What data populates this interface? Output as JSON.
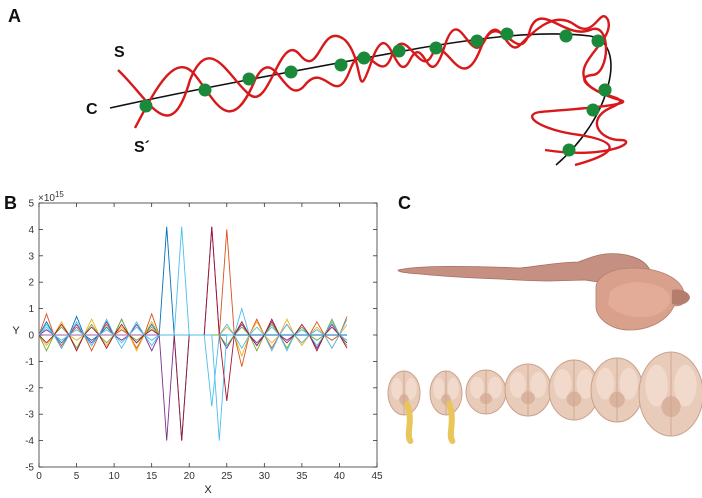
{
  "panels": {
    "a": "A",
    "b": "B",
    "c": "C"
  },
  "panelA": {
    "label_s": "S",
    "label_c": "C",
    "label_s_prime": "S´",
    "colors": {
      "helix": "#d7191c",
      "axis": "#111111",
      "nodes": "#1a8a3a"
    },
    "node_count": 13
  },
  "chart_data": {
    "type": "line",
    "title": "",
    "xlabel": "X",
    "ylabel": "Y",
    "exponent_label": "×10",
    "exponent_power": "15",
    "xlim": [
      0,
      45
    ],
    "ylim": [
      -5,
      5
    ],
    "xticks": [
      "0",
      "5",
      "10",
      "15",
      "20",
      "25",
      "30",
      "35",
      "40",
      "45"
    ],
    "yticks": [
      "5",
      "4",
      "3",
      "2",
      "1",
      "0",
      "-1",
      "-2",
      "-3",
      "-4",
      "-5"
    ],
    "x": [
      0,
      1,
      2,
      3,
      4,
      5,
      6,
      7,
      8,
      9,
      10,
      11,
      12,
      13,
      14,
      15,
      16,
      17,
      18,
      19,
      20,
      21,
      22,
      23,
      24,
      25,
      26,
      27,
      28,
      29,
      30,
      31,
      32,
      33,
      34,
      35,
      36,
      37,
      38,
      39,
      40,
      41
    ],
    "series": [
      {
        "color": "#0072bd",
        "values": [
          0,
          0.5,
          0,
          -0.3,
          0,
          0.7,
          0,
          -0.2,
          0,
          0.3,
          0,
          0.6,
          0,
          -0.3,
          0,
          0.4,
          0,
          4.1,
          0,
          -4.0,
          0,
          0,
          0,
          0,
          0,
          0,
          0,
          0,
          0,
          0,
          0,
          0,
          0,
          0,
          0,
          0,
          0,
          0,
          0,
          0,
          0,
          0
        ]
      },
      {
        "color": "#d95319",
        "values": [
          0,
          0.8,
          0,
          -0.4,
          0,
          0.3,
          0,
          -0.6,
          0,
          0.4,
          0,
          0.2,
          0,
          -0.5,
          0,
          0.8,
          0,
          0,
          0,
          0,
          0,
          0,
          0,
          0,
          0,
          4.0,
          0,
          -1.2,
          0,
          0.6,
          0,
          -0.5,
          0,
          0.4,
          0,
          -0.3,
          0,
          0.5,
          0,
          -0.2,
          0,
          0.7
        ]
      },
      {
        "color": "#edb120",
        "values": [
          0,
          -0.4,
          0,
          0.5,
          0,
          -0.2,
          0,
          0.6,
          0,
          -0.4,
          0,
          0.3,
          0,
          -0.6,
          0,
          0.5,
          0,
          0,
          0,
          0,
          0,
          0,
          0,
          0,
          0,
          0.3,
          0,
          -0.8,
          0,
          0.5,
          0,
          -0.3,
          0,
          0.6,
          0,
          -0.4,
          0,
          0.3,
          0,
          -0.5,
          0,
          0.4
        ]
      },
      {
        "color": "#7e2f8e",
        "values": [
          0,
          0.2,
          0,
          -0.5,
          0,
          0.4,
          0,
          -0.3,
          0,
          0.5,
          0,
          -0.2,
          0,
          0.4,
          0,
          -0.6,
          0,
          -4.0,
          0,
          0,
          0,
          0,
          0,
          4.1,
          0,
          -0.5,
          0,
          0.4,
          0,
          -0.3,
          0,
          0.5,
          0,
          -0.2,
          0,
          0.3,
          0,
          -0.5,
          0,
          0.4,
          0,
          -0.3
        ]
      },
      {
        "color": "#77ac30",
        "values": [
          0,
          -0.6,
          0,
          0.3,
          0,
          -0.5,
          0,
          0.4,
          0,
          -0.3,
          0,
          0.6,
          0,
          -0.2,
          0,
          0.3,
          0,
          0,
          0,
          0,
          0,
          0,
          0,
          0,
          0,
          -0.4,
          0,
          0.3,
          0,
          -0.6,
          0,
          0.4,
          0,
          -0.5,
          0,
          0.3,
          0,
          -0.2,
          0,
          0.6,
          0,
          -0.4
        ]
      },
      {
        "color": "#4dbeee",
        "values": [
          0,
          0.3,
          0,
          -0.2,
          0,
          0.5,
          0,
          -0.4,
          0,
          0.2,
          0,
          -0.5,
          0,
          0.3,
          0,
          -0.4,
          0,
          0,
          0,
          4.1,
          0,
          0,
          0,
          0,
          -4.0,
          0,
          0,
          1.0,
          0,
          -0.4,
          0,
          0.3,
          0,
          -0.6,
          0,
          0.2,
          0,
          -0.4,
          0,
          0.5,
          0,
          -0.2
        ]
      },
      {
        "color": "#a2142f",
        "values": [
          0,
          -0.3,
          0,
          0.4,
          0,
          -0.6,
          0,
          0.3,
          0,
          -0.5,
          0,
          0.4,
          0,
          -0.3,
          0,
          0.2,
          0,
          0,
          0,
          -4.0,
          0,
          0,
          0,
          4.1,
          0,
          -2.5,
          0,
          0.5,
          0,
          -0.4,
          0,
          0.6,
          0,
          -0.3,
          0,
          0.4,
          0,
          -0.6,
          0,
          0.3,
          0,
          -0.5
        ]
      },
      {
        "color": "#4dbeee",
        "values": [
          0,
          0.4,
          0,
          -0.5,
          0,
          0.2,
          0,
          -0.4,
          0,
          0.6,
          0,
          -0.3,
          0,
          0.5,
          0,
          -0.2,
          0,
          0,
          0,
          0,
          0,
          0,
          0,
          -2.7,
          0,
          0.4,
          0,
          -0.5,
          0,
          0.3,
          0,
          -0.6,
          0,
          0.4,
          0,
          -0.3,
          0,
          0.2,
          0,
          -0.5,
          0,
          0.6
        ]
      }
    ],
    "grid": false,
    "legend": "none"
  },
  "panelC": {
    "colors": {
      "tissue": "#e8cbb8",
      "tissue_dark": "#b57d6e",
      "brainstem": "#c59082",
      "nerve": "#e9c55a"
    },
    "section_count": 7
  }
}
